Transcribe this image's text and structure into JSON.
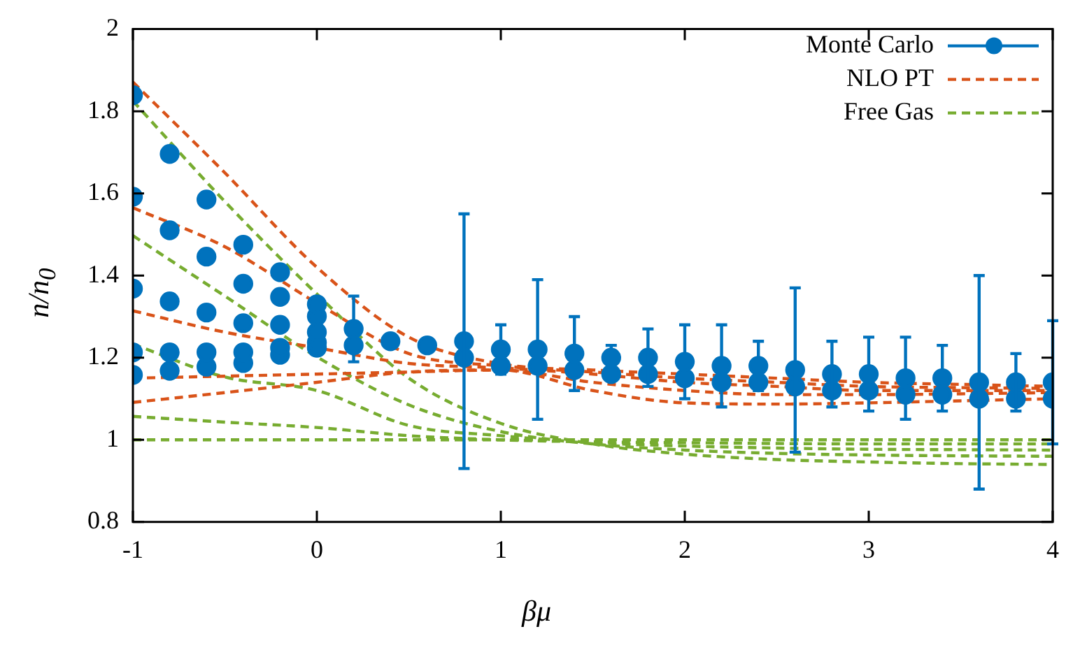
{
  "chart_data": {
    "type": "scatter",
    "xlabel": "βμ",
    "ylabel": "n/n$_{0}$",
    "xlim": [
      -1,
      4
    ],
    "ylim": [
      0.8,
      2
    ],
    "xticks": [
      -1,
      0,
      1,
      2,
      3,
      4
    ],
    "yticks": [
      0.8,
      1,
      1.2,
      1.4,
      1.6,
      1.8,
      2
    ],
    "legend": "top right",
    "series": [
      {
        "name": "Monte Carlo",
        "marker": "circle",
        "color": "#0072bd",
        "x": [
          -1,
          -0.8,
          -0.6,
          -0.4,
          -0.2,
          0,
          0.2,
          0.4,
          0.6,
          0.8,
          1,
          1.2,
          1.4,
          1.6,
          1.8,
          2,
          2.2,
          2.4,
          2.6,
          2.8,
          3,
          3.2,
          3.4,
          3.6,
          3.8,
          4
        ],
        "values": [
          1.839,
          1.696,
          1.585,
          1.475,
          1.408,
          1.33,
          1.27,
          1.24,
          1.23,
          1.24,
          1.22,
          1.22,
          1.21,
          1.2,
          1.2,
          1.19,
          1.18,
          1.18,
          1.17,
          1.16,
          1.16,
          1.15,
          1.15,
          1.14,
          1.14,
          1.14
        ],
        "errors": [
          null,
          null,
          null,
          null,
          null,
          null,
          0.08,
          null,
          null,
          0.31,
          0.06,
          0.17,
          0.09,
          0.03,
          0.07,
          0.09,
          0.1,
          0.06,
          0.2,
          0.08,
          0.09,
          0.1,
          0.08,
          0.26,
          0.07,
          0.15
        ]
      },
      {
        "marker": "circle",
        "color": "#0072bd",
        "x": [
          -1,
          -0.8,
          -0.6,
          -0.4,
          -0.2,
          0
        ],
        "values": [
          1.592,
          1.51,
          1.446,
          1.38,
          1.348,
          1.301
        ]
      },
      {
        "marker": "circle",
        "color": "#0072bd",
        "x": [
          -1,
          -0.8,
          -0.6,
          -0.4,
          -0.2,
          0
        ],
        "values": [
          1.368,
          1.337,
          1.31,
          1.284,
          1.28,
          1.262
        ]
      },
      {
        "marker": "circle",
        "color": "#0072bd",
        "x": [
          -1,
          -0.8,
          -0.6,
          -0.4,
          -0.2,
          0
        ],
        "values": [
          1.213,
          1.213,
          1.213,
          1.213,
          1.224,
          1.237
        ]
      },
      {
        "marker": "circle",
        "color": "#0072bd",
        "x": [
          -1,
          -0.8,
          -0.6,
          -0.4,
          -0.2,
          0,
          0.2,
          0.4,
          0.6,
          0.8,
          1,
          1.2,
          1.4,
          1.6,
          1.8,
          2,
          2.2,
          2.4,
          2.6,
          2.8,
          3,
          3.2,
          3.4,
          3.6,
          3.8,
          4
        ],
        "values": [
          1.158,
          1.168,
          1.178,
          1.187,
          1.207,
          1.224,
          1.23,
          null,
          null,
          1.2,
          1.18,
          1.18,
          1.17,
          1.16,
          1.16,
          1.15,
          1.14,
          1.14,
          1.13,
          1.12,
          1.12,
          1.11,
          1.11,
          1.1,
          1.1,
          1.1
        ]
      },
      {
        "name": "NLO PT",
        "type": "line",
        "marker": "none",
        "line_style": "dashed",
        "color": "#d95319",
        "x": [
          -1,
          -0.5,
          0,
          0.5,
          1,
          1.5,
          2,
          2.5,
          3,
          3.5,
          4
        ],
        "values": [
          1.871,
          1.65,
          1.42,
          1.25,
          1.185,
          1.17,
          1.16,
          1.15,
          1.14,
          1.135,
          1.13
        ]
      },
      {
        "type": "line",
        "marker": "none",
        "line_style": "dashed",
        "color": "#d95319",
        "x": [
          -1,
          -0.5,
          0,
          0.5,
          1,
          1.5,
          2,
          2.5,
          3,
          3.5,
          4
        ],
        "values": [
          1.565,
          1.47,
          1.333,
          1.21,
          1.18,
          1.165,
          1.15,
          1.14,
          1.13,
          1.127,
          1.125
        ]
      },
      {
        "type": "line",
        "marker": "none",
        "line_style": "dashed",
        "color": "#d95319",
        "x": [
          -1,
          -0.5,
          0,
          0.5,
          1,
          1.5,
          2,
          2.5,
          3,
          3.5,
          4
        ],
        "values": [
          1.314,
          1.262,
          1.224,
          1.186,
          1.175,
          1.16,
          1.14,
          1.13,
          1.12,
          1.12,
          1.12
        ]
      },
      {
        "type": "line",
        "marker": "none",
        "line_style": "dashed",
        "color": "#d95319",
        "x": [
          -1,
          -0.5,
          0,
          0.5,
          1,
          1.5,
          2,
          2.5,
          3,
          3.5,
          4
        ],
        "values": [
          1.15,
          1.155,
          1.16,
          1.165,
          1.17,
          1.14,
          1.12,
          1.11,
          1.11,
          1.112,
          1.115
        ]
      },
      {
        "type": "line",
        "marker": "none",
        "line_style": "dashed",
        "color": "#d95319",
        "x": [
          -1,
          -0.5,
          0,
          0.5,
          1,
          1.5,
          2,
          2.5,
          3,
          3.5,
          4
        ],
        "values": [
          1.091,
          1.115,
          1.14,
          1.165,
          1.17,
          1.12,
          1.09,
          1.087,
          1.09,
          1.095,
          1.1
        ]
      },
      {
        "name": "Free Gas",
        "type": "line",
        "marker": "none",
        "line_style": "dashed",
        "color": "#77ac30",
        "x": [
          -1,
          -0.5,
          0,
          0.5,
          1,
          1.5,
          2,
          2.5,
          3,
          3.5,
          4
        ],
        "values": [
          1.825,
          1.58,
          1.355,
          1.15,
          1.04,
          0.99,
          0.965,
          0.952,
          0.946,
          0.942,
          0.94
        ]
      },
      {
        "type": "line",
        "marker": "none",
        "line_style": "dashed",
        "color": "#77ac30",
        "x": [
          -1,
          -0.5,
          0,
          0.5,
          1,
          1.5,
          2,
          2.5,
          3,
          3.5,
          4
        ],
        "values": [
          1.497,
          1.35,
          1.202,
          1.085,
          1.02,
          0.99,
          0.975,
          0.967,
          0.963,
          0.961,
          0.96
        ]
      },
      {
        "type": "line",
        "marker": "none",
        "line_style": "dashed",
        "color": "#77ac30",
        "x": [
          -1,
          -0.5,
          0,
          0.5,
          1,
          1.5,
          2,
          2.5,
          3,
          3.5,
          4
        ],
        "values": [
          1.233,
          1.153,
          1.12,
          1.035,
          1.01,
          0.993,
          0.985,
          0.98,
          0.977,
          0.976,
          0.975
        ]
      },
      {
        "type": "line",
        "marker": "none",
        "line_style": "dashed",
        "color": "#77ac30",
        "x": [
          -1,
          -0.5,
          0,
          0.5,
          1,
          1.5,
          2,
          2.5,
          3,
          3.5,
          4
        ],
        "values": [
          1.057,
          1.043,
          1.03,
          1.01,
          1.0,
          0.995,
          0.993,
          0.991,
          0.99,
          0.99,
          0.99
        ]
      },
      {
        "type": "line",
        "marker": "none",
        "line_style": "dashed",
        "color": "#77ac30",
        "x": [
          -1,
          -0.5,
          0,
          0.5,
          1,
          1.5,
          2,
          2.5,
          3,
          3.5,
          4
        ],
        "values": [
          1.0,
          1.0,
          1.0,
          1.0,
          1.0,
          1.0,
          1.0,
          1.0,
          1.0,
          1.0,
          1.0
        ]
      }
    ]
  }
}
